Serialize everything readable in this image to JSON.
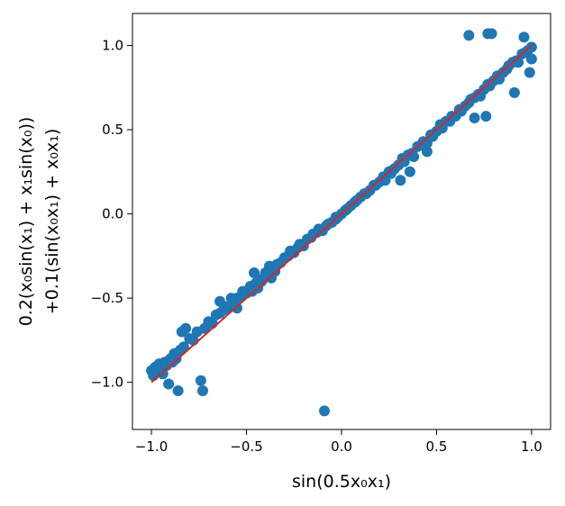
{
  "chart_data": {
    "type": "scatter",
    "xlabel": "sin(0.5x₀x₁)",
    "ylabel_line1": "0.2(x₀sin(x₁) + x₁sin(x₀))",
    "ylabel_line2": "+0.1(sin(x₀x₁) + x₀x₁)",
    "xlim": [
      -1.1,
      1.1
    ],
    "ylim": [
      -1.28,
      1.19
    ],
    "xticks": [
      -1.0,
      -0.5,
      0.0,
      0.5,
      1.0
    ],
    "xtick_labels": [
      "−1.0",
      "−0.5",
      "0.0",
      "0.5",
      "1.0"
    ],
    "yticks": [
      -1.0,
      -0.5,
      0.0,
      0.5,
      1.0
    ],
    "ytick_labels": [
      "−1.0",
      "−0.5",
      "0.0",
      "0.5",
      "1.0"
    ],
    "grid": false,
    "colors": {
      "points": "#1f77b4",
      "line": "#d62728"
    },
    "series": [
      {
        "kind": "scatter",
        "points": [
          [
            -1.0,
            -0.93
          ],
          [
            -0.99,
            -0.96
          ],
          [
            -0.98,
            -0.91
          ],
          [
            -0.97,
            -0.94
          ],
          [
            -0.96,
            -0.89
          ],
          [
            -0.95,
            -0.92
          ],
          [
            -0.94,
            -0.95
          ],
          [
            -0.93,
            -0.88
          ],
          [
            -0.92,
            -0.9
          ],
          [
            -0.91,
            -1.01
          ],
          [
            -0.9,
            -0.86
          ],
          [
            -0.89,
            -0.88
          ],
          [
            -0.88,
            -0.83
          ],
          [
            -0.87,
            -0.86
          ],
          [
            -0.86,
            -1.05
          ],
          [
            -0.85,
            -0.81
          ],
          [
            -0.84,
            -0.7
          ],
          [
            -0.83,
            -0.79
          ],
          [
            -0.82,
            -0.68
          ],
          [
            -0.8,
            -0.74
          ],
          [
            -0.78,
            -0.75
          ],
          [
            -0.76,
            -0.7
          ],
          [
            -0.74,
            -0.99
          ],
          [
            -0.73,
            -1.05
          ],
          [
            -0.72,
            -0.68
          ],
          [
            -0.7,
            -0.64
          ],
          [
            -0.68,
            -0.65
          ],
          [
            -0.66,
            -0.6
          ],
          [
            -0.64,
            -0.59
          ],
          [
            -0.64,
            -0.52
          ],
          [
            -0.62,
            -0.57
          ],
          [
            -0.6,
            -0.56
          ],
          [
            -0.58,
            -0.5
          ],
          [
            -0.57,
            -0.54
          ],
          [
            -0.55,
            -0.5
          ],
          [
            -0.53,
            -0.49
          ],
          [
            -0.52,
            -0.46
          ],
          [
            -0.5,
            -0.47
          ],
          [
            -0.48,
            -0.43
          ],
          [
            -0.47,
            -0.46
          ],
          [
            -0.46,
            -0.35
          ],
          [
            -0.45,
            -0.41
          ],
          [
            -0.43,
            -0.39
          ],
          [
            -0.42,
            -0.4
          ],
          [
            -0.4,
            -0.35
          ],
          [
            -0.39,
            -0.37
          ],
          [
            -0.38,
            -0.31
          ],
          [
            -0.37,
            -0.32
          ],
          [
            -0.35,
            -0.34
          ],
          [
            -0.34,
            -0.3
          ],
          [
            -0.32,
            -0.29
          ],
          [
            -0.3,
            -0.26
          ],
          [
            -0.28,
            -0.25
          ],
          [
            -0.27,
            -0.22
          ],
          [
            -0.25,
            -0.23
          ],
          [
            -0.23,
            -0.2
          ],
          [
            -0.22,
            -0.18
          ],
          [
            -0.2,
            -0.19
          ],
          [
            -0.18,
            -0.15
          ],
          [
            -0.16,
            -0.14
          ],
          [
            -0.15,
            -0.12
          ],
          [
            -0.13,
            -0.11
          ],
          [
            -0.12,
            -0.09
          ],
          [
            -0.1,
            -0.1
          ],
          [
            -0.08,
            -0.07
          ],
          [
            -0.07,
            -0.06
          ],
          [
            -0.05,
            -0.05
          ],
          [
            -0.03,
            -0.03
          ],
          [
            -0.02,
            -0.02
          ],
          [
            0.0,
            0.0
          ],
          [
            0.02,
            0.02
          ],
          [
            0.03,
            0.03
          ],
          [
            0.05,
            0.05
          ],
          [
            0.07,
            0.07
          ],
          [
            0.08,
            0.08
          ],
          [
            0.1,
            0.1
          ],
          [
            0.12,
            0.12
          ],
          [
            0.13,
            0.12
          ],
          [
            0.15,
            0.14
          ],
          [
            0.17,
            0.17
          ],
          [
            0.18,
            0.17
          ],
          [
            0.2,
            0.19
          ],
          [
            0.22,
            0.22
          ],
          [
            0.23,
            0.2
          ],
          [
            0.25,
            0.25
          ],
          [
            0.27,
            0.26
          ],
          [
            0.28,
            0.27
          ],
          [
            0.3,
            0.29
          ],
          [
            0.32,
            0.33
          ],
          [
            0.33,
            0.31
          ],
          [
            0.35,
            0.35
          ],
          [
            0.37,
            0.36
          ],
          [
            0.38,
            0.34
          ],
          [
            0.4,
            0.4
          ],
          [
            0.42,
            0.41
          ],
          [
            0.43,
            0.43
          ],
          [
            0.45,
            0.42
          ],
          [
            0.47,
            0.47
          ],
          [
            0.48,
            0.46
          ],
          [
            0.5,
            0.49
          ],
          [
            0.52,
            0.53
          ],
          [
            0.53,
            0.51
          ],
          [
            0.55,
            0.55
          ],
          [
            0.57,
            0.55
          ],
          [
            0.58,
            0.58
          ],
          [
            0.6,
            0.58
          ],
          [
            0.62,
            0.62
          ],
          [
            0.63,
            0.61
          ],
          [
            0.65,
            0.64
          ],
          [
            0.67,
            0.66
          ],
          [
            0.68,
            0.68
          ],
          [
            0.7,
            0.69
          ],
          [
            0.72,
            0.71
          ],
          [
            0.73,
            0.7
          ],
          [
            0.75,
            0.74
          ],
          [
            0.77,
            0.77
          ],
          [
            0.78,
            0.76
          ],
          [
            0.8,
            0.79
          ],
          [
            0.82,
            0.82
          ],
          [
            0.83,
            0.8
          ],
          [
            0.85,
            0.84
          ],
          [
            0.87,
            0.86
          ],
          [
            0.88,
            0.88
          ],
          [
            0.9,
            0.9
          ],
          [
            0.92,
            0.91
          ],
          [
            0.93,
            0.9
          ],
          [
            0.95,
            0.95
          ],
          [
            0.97,
            0.96
          ],
          [
            0.98,
            0.97
          ],
          [
            1.0,
            0.99
          ],
          [
            1.0,
            0.92
          ],
          [
            0.99,
            0.84
          ],
          [
            0.96,
            1.05
          ],
          [
            0.91,
            0.72
          ],
          [
            0.79,
            1.07
          ],
          [
            0.77,
            1.07
          ],
          [
            0.67,
            1.06
          ],
          [
            0.76,
            0.58
          ],
          [
            0.7,
            0.57
          ],
          [
            0.52,
            0.52
          ],
          [
            0.45,
            0.37
          ],
          [
            0.36,
            0.25
          ],
          [
            0.31,
            0.2
          ],
          [
            -0.37,
            -0.38
          ],
          [
            -0.44,
            -0.44
          ],
          [
            -0.55,
            -0.56
          ],
          [
            -0.61,
            -0.55
          ],
          [
            -0.09,
            -1.17
          ],
          [
            -0.03,
            -0.02
          ],
          [
            0.26,
            0.24
          ]
        ]
      },
      {
        "kind": "line",
        "points": [
          [
            -1.0,
            -1.0
          ],
          [
            1.0,
            1.0
          ]
        ]
      }
    ]
  }
}
